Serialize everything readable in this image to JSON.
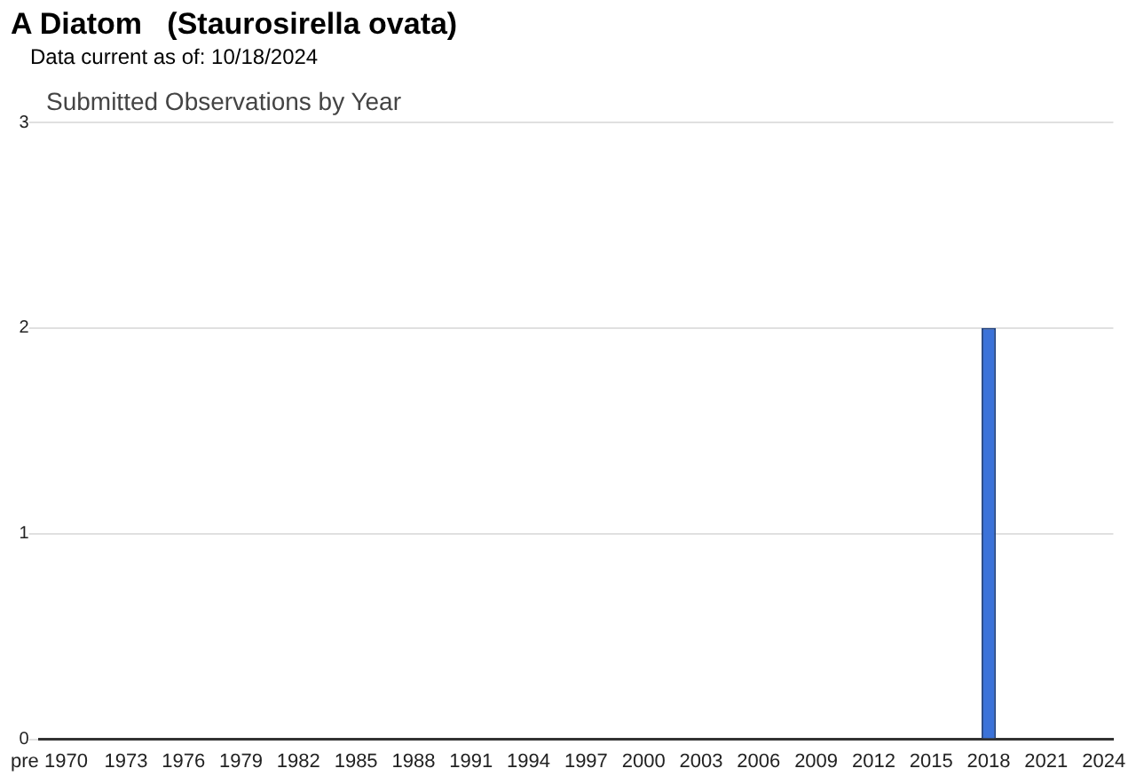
{
  "chart_data": {
    "type": "bar",
    "title": "A Diatom   (Staurosirella ovata)",
    "subtitle": "Data current as of: 10/18/2024",
    "annotations": [
      "Submitted Observations by Year"
    ],
    "categories": [
      "pre 1970",
      null,
      null,
      null,
      "1973",
      null,
      null,
      "1976",
      null,
      null,
      "1979",
      null,
      null,
      "1982",
      null,
      null,
      "1985",
      null,
      null,
      "1988",
      null,
      null,
      "1991",
      null,
      null,
      "1994",
      null,
      null,
      "1997",
      null,
      null,
      "2000",
      null,
      null,
      "2003",
      null,
      null,
      "2006",
      null,
      null,
      "2009",
      null,
      null,
      "2012",
      null,
      null,
      "2015",
      null,
      null,
      "2018",
      null,
      null,
      "2021",
      null,
      null,
      "2024"
    ],
    "values": [
      0,
      0,
      0,
      0,
      0,
      0,
      0,
      0,
      0,
      0,
      0,
      0,
      0,
      0,
      0,
      0,
      0,
      0,
      0,
      0,
      0,
      0,
      0,
      0,
      0,
      0,
      0,
      0,
      0,
      0,
      0,
      0,
      0,
      0,
      0,
      0,
      0,
      0,
      0,
      0,
      0,
      0,
      0,
      0,
      0,
      0,
      0,
      0,
      0,
      2,
      0,
      0,
      0,
      0,
      0,
      0
    ],
    "color": "#3b72d9",
    "ylim": [
      0,
      3
    ],
    "yticks": [
      0,
      1,
      2,
      3
    ],
    "grid": "y"
  }
}
